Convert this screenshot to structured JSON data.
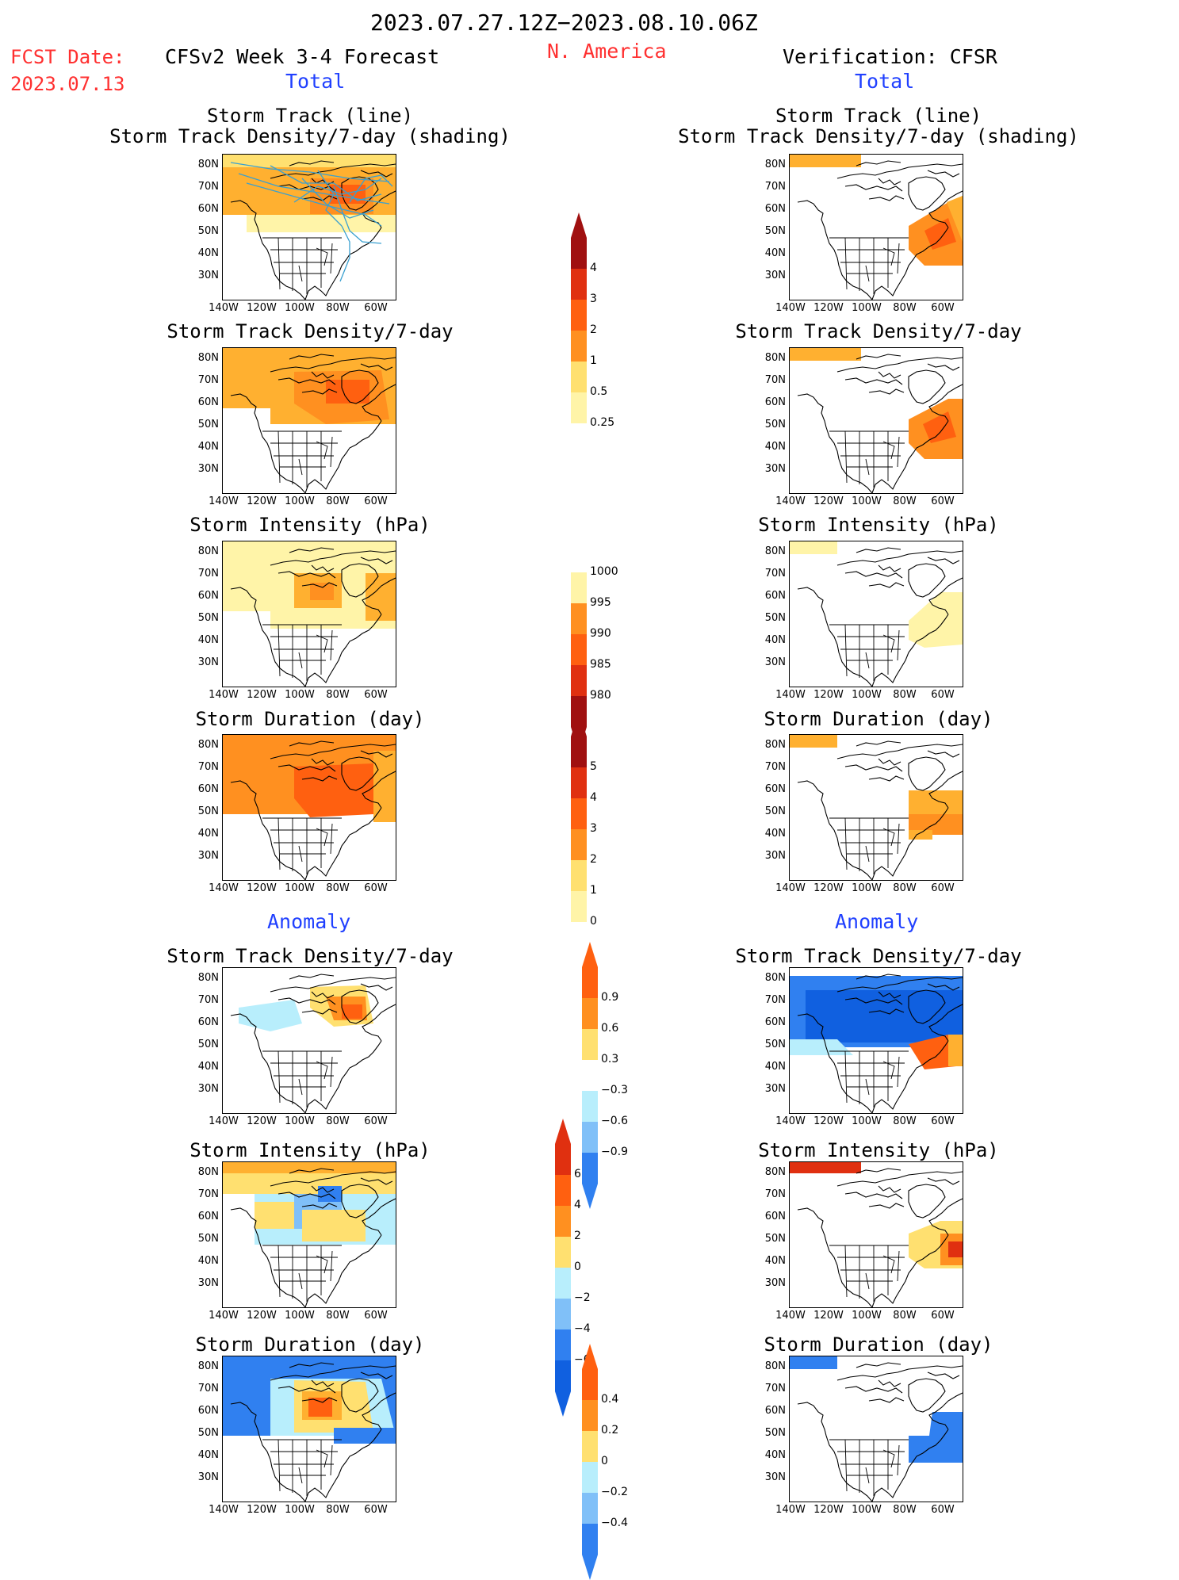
{
  "header": {
    "date_range": "2023.07.27.12Z−2023.08.10.06Z",
    "fcst_label": "FCST Date:",
    "fcst_date": "2023.07.13",
    "model_title": "CFSv2 Week 3-4 Forecast",
    "region": "N. America",
    "verification": "Verification: CFSR"
  },
  "sections": {
    "total": "Total",
    "anomaly": "Anomaly"
  },
  "panel_titles": {
    "track_line": "Storm Track (line)",
    "track_density_shading": "Storm Track Density/7-day (shading)",
    "track_density": "Storm Track Density/7-day",
    "intensity": "Storm Intensity (hPa)",
    "duration": "Storm Duration (day)"
  },
  "axes": {
    "lat_labels": [
      "80N",
      "70N",
      "60N",
      "50N",
      "40N",
      "30N"
    ],
    "lon_labels": [
      "140W",
      "120W",
      "100W",
      "80W",
      "60W"
    ]
  },
  "colorbars": {
    "density_total": [
      "4",
      "3",
      "2",
      "1",
      "0.5",
      "0.25"
    ],
    "intensity_total": [
      "1000",
      "995",
      "990",
      "985",
      "980"
    ],
    "duration_total": [
      "5",
      "4",
      "3",
      "2",
      "1",
      "0"
    ],
    "density_anom": [
      "0.9",
      "0.6",
      "0.3",
      "−0.3",
      "−0.6",
      "−0.9"
    ],
    "intensity_anom": [
      "6",
      "4",
      "2",
      "0",
      "−2",
      "−4",
      "−6"
    ],
    "duration_anom": [
      "0.4",
      "0.2",
      "0",
      "−0.2",
      "−0.4"
    ]
  },
  "colors": {
    "pale_yellow": "#fff4a8",
    "light_yellow": "#ffe070",
    "light_orange": "#ffb030",
    "orange": "#ff9020",
    "dark_orange": "#ff6010",
    "red": "#e03010",
    "dark_red": "#a01010",
    "light_cyan": "#b8eefc",
    "light_blue": "#80c0f8",
    "blue": "#3080f0",
    "dark_blue": "#1060e0",
    "track_line": "#3aa0d0",
    "header_red": "#ff3030",
    "section_blue": "#2040ff"
  }
}
